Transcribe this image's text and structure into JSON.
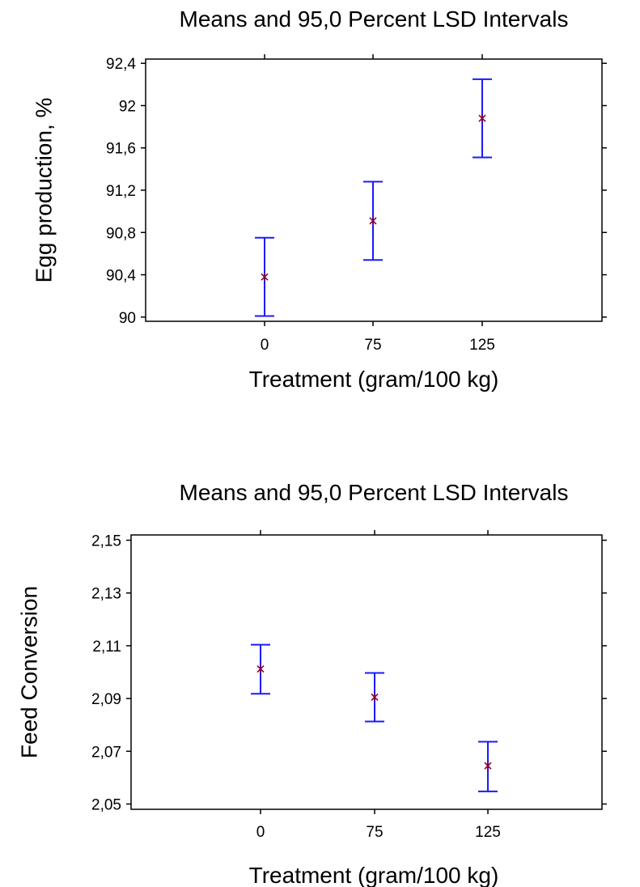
{
  "chart_data": [
    {
      "type": "errorbar",
      "title": "Means and 95,0 Percent LSD Intervals",
      "xlabel": "Treatment (gram/100 kg)",
      "ylabel": "Egg production,  %",
      "categories": [
        "0",
        "75",
        "125"
      ],
      "series": [
        {
          "mean": [
            90.38,
            90.91,
            91.88
          ],
          "lower": [
            90.01,
            90.54,
            91.51
          ],
          "upper": [
            90.75,
            91.28,
            92.25
          ]
        }
      ],
      "yticks": [
        "90",
        "90,4",
        "90,8",
        "91,2",
        "91,6",
        "92",
        "92,4"
      ],
      "ytick_values": [
        90,
        90.4,
        90.8,
        91.2,
        91.6,
        92,
        92.4
      ],
      "ylim": [
        89.96,
        92.44
      ],
      "grid": false,
      "colors": {
        "interval": "#1a1aff",
        "mean": "#800040"
      }
    },
    {
      "type": "errorbar",
      "title": "Means and 95,0 Percent LSD Intervals",
      "xlabel": "Treatment (gram/100 kg)",
      "ylabel": "Feed Conversion",
      "categories": [
        "0",
        "75",
        "125"
      ],
      "series": [
        {
          "mean": [
            2.1012,
            2.0905,
            2.0645
          ],
          "lower": [
            2.0918,
            2.0813,
            2.0548
          ],
          "upper": [
            2.1104,
            2.0997,
            2.0736
          ]
        }
      ],
      "yticks": [
        "2,05",
        "2,07",
        "2,09",
        "2,11",
        "2,13",
        "2,15"
      ],
      "ytick_values": [
        2.05,
        2.07,
        2.09,
        2.11,
        2.13,
        2.15
      ],
      "ylim": [
        2.048,
        2.152
      ],
      "grid": false,
      "colors": {
        "interval": "#1a1aff",
        "mean": "#800040"
      }
    }
  ]
}
